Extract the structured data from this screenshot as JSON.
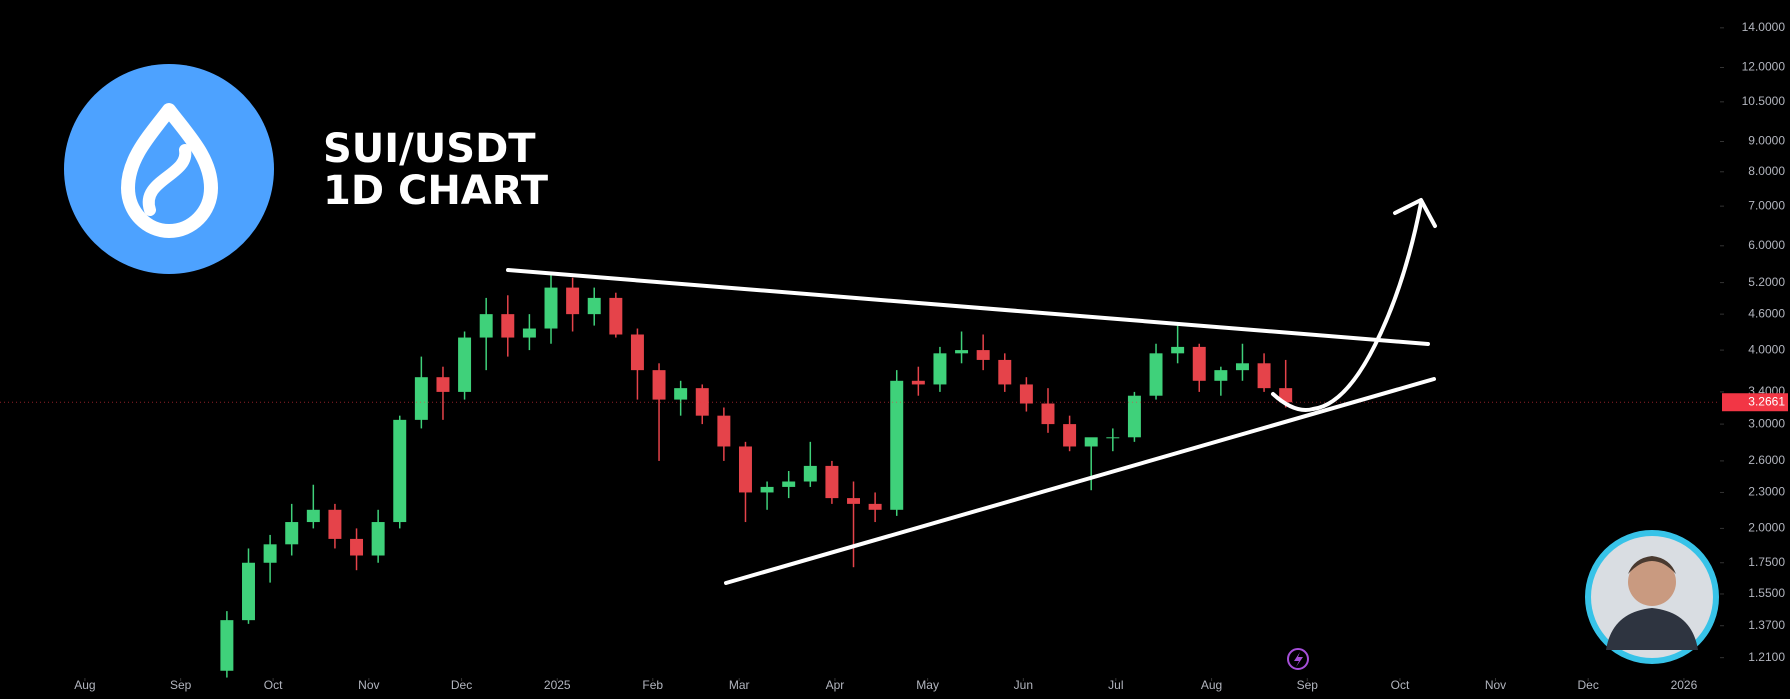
{
  "chart_data": {
    "type": "candlestick",
    "title": [
      "SUI/USDT",
      "1D CHART"
    ],
    "log_scale": true,
    "up_color": "#3fd17a",
    "down_color": "#e5434a",
    "categories": [
      null,
      null,
      null,
      null,
      null,
      null,
      null,
      null,
      null,
      null,
      null,
      null,
      null,
      null,
      null,
      null,
      null,
      null,
      null,
      null,
      null,
      null,
      null,
      null,
      null,
      null,
      null,
      null,
      null,
      null,
      null,
      null,
      null,
      null,
      null,
      null,
      null,
      null,
      null,
      null,
      null,
      null,
      null,
      null,
      null,
      null,
      null,
      null,
      null,
      null
    ],
    "series": [
      {
        "name": "open",
        "values": [
          1.15,
          1.4,
          1.75,
          1.88,
          2.05,
          2.15,
          1.92,
          1.8,
          2.05,
          3.05,
          3.6,
          3.4,
          4.2,
          4.6,
          4.2,
          4.35,
          5.1,
          4.6,
          4.9,
          4.25,
          3.7,
          3.3,
          3.45,
          3.1,
          2.75,
          2.3,
          2.35,
          2.4,
          2.55,
          2.25,
          2.2,
          2.15,
          3.55,
          3.5,
          3.95,
          4.0,
          3.85,
          3.5,
          3.25,
          3.0,
          2.75,
          2.85,
          2.85,
          3.35,
          3.95,
          4.05,
          3.55,
          3.7,
          3.8,
          3.45
        ]
      },
      {
        "name": "high",
        "values": [
          1.45,
          1.85,
          1.95,
          2.2,
          2.37,
          2.2,
          2.0,
          2.15,
          3.1,
          3.9,
          3.75,
          4.3,
          4.9,
          4.95,
          4.6,
          5.35,
          5.3,
          5.1,
          5.0,
          4.35,
          3.8,
          3.55,
          3.5,
          3.2,
          2.8,
          2.4,
          2.5,
          2.8,
          2.6,
          2.4,
          2.3,
          3.7,
          3.75,
          4.05,
          4.3,
          4.25,
          3.95,
          3.6,
          3.45,
          3.1,
          2.8,
          2.95,
          3.4,
          4.1,
          4.4,
          4.1,
          3.75,
          4.1,
          3.95,
          3.85
        ]
      },
      {
        "name": "low",
        "values": [
          1.12,
          1.38,
          1.62,
          1.8,
          2.0,
          1.85,
          1.7,
          1.75,
          2.0,
          2.95,
          3.05,
          3.3,
          3.7,
          3.9,
          4.0,
          4.1,
          4.3,
          4.4,
          4.2,
          3.3,
          2.6,
          3.1,
          3.0,
          2.6,
          2.05,
          2.15,
          2.25,
          2.35,
          2.2,
          1.72,
          2.05,
          2.1,
          3.35,
          3.4,
          3.8,
          3.7,
          3.4,
          3.15,
          2.9,
          2.7,
          2.32,
          2.7,
          2.8,
          3.3,
          3.8,
          3.4,
          3.35,
          3.55,
          3.4,
          3.2
        ]
      },
      {
        "name": "close",
        "values": [
          1.4,
          1.75,
          1.88,
          2.05,
          2.15,
          1.92,
          1.8,
          2.05,
          3.05,
          3.6,
          3.4,
          4.2,
          4.6,
          4.2,
          4.35,
          5.1,
          4.6,
          4.9,
          4.25,
          3.7,
          3.3,
          3.45,
          3.1,
          2.75,
          2.3,
          2.35,
          2.4,
          2.55,
          2.25,
          2.2,
          2.15,
          3.55,
          3.5,
          3.95,
          4.0,
          3.85,
          3.5,
          3.25,
          3.0,
          2.75,
          2.85,
          2.85,
          3.35,
          3.95,
          4.05,
          3.55,
          3.7,
          3.8,
          3.45,
          3.2661
        ]
      }
    ],
    "last_price": 3.2661,
    "last_price_color": "#f23645",
    "ylim": [
      1.14,
      15.6
    ],
    "yticks": [
      {
        "value": 14,
        "label": "14.0000"
      },
      {
        "value": 12,
        "label": "12.0000"
      },
      {
        "value": 10.5,
        "label": "10.5000"
      },
      {
        "value": 9,
        "label": "9.0000"
      },
      {
        "value": 8,
        "label": "8.0000"
      },
      {
        "value": 7,
        "label": "7.0000"
      },
      {
        "value": 6,
        "label": "6.0000"
      },
      {
        "value": 5.2,
        "label": "5.2000"
      },
      {
        "value": 4.6,
        "label": "4.6000"
      },
      {
        "value": 4,
        "label": "4.0000"
      },
      {
        "value": 3.4,
        "label": "3.4000"
      },
      {
        "value": 3,
        "label": "3.0000"
      },
      {
        "value": 2.6,
        "label": "2.6000"
      },
      {
        "value": 2.3,
        "label": "2.3000"
      },
      {
        "value": 2,
        "label": "2.0000"
      },
      {
        "value": 1.75,
        "label": "1.7500"
      },
      {
        "value": 1.55,
        "label": "1.5500"
      },
      {
        "value": 1.37,
        "label": "1.3700"
      },
      {
        "value": 1.21,
        "label": "1.2100"
      }
    ],
    "xlim": [
      -10.5,
      69.1
    ],
    "xticks": [
      {
        "value": -6.57,
        "label": "Aug"
      },
      {
        "value": -2.14,
        "label": "Sep"
      },
      {
        "value": 2.14,
        "label": "Oct"
      },
      {
        "value": 6.57,
        "label": "Nov"
      },
      {
        "value": 10.86,
        "label": "Dec"
      },
      {
        "value": 15.29,
        "label": "2025"
      },
      {
        "value": 19.71,
        "label": "Feb"
      },
      {
        "value": 23.71,
        "label": "Mar"
      },
      {
        "value": 28.14,
        "label": "Apr"
      },
      {
        "value": 32.43,
        "label": "May"
      },
      {
        "value": 36.86,
        "label": "Jun"
      },
      {
        "value": 41.14,
        "label": "Jul"
      },
      {
        "value": 45.57,
        "label": "Aug"
      },
      {
        "value": 50,
        "label": "Sep"
      },
      {
        "value": 54.29,
        "label": "Oct"
      },
      {
        "value": 58.71,
        "label": "Nov"
      },
      {
        "value": 63,
        "label": "Dec"
      },
      {
        "value": 67.43,
        "label": "2026"
      }
    ]
  }
}
